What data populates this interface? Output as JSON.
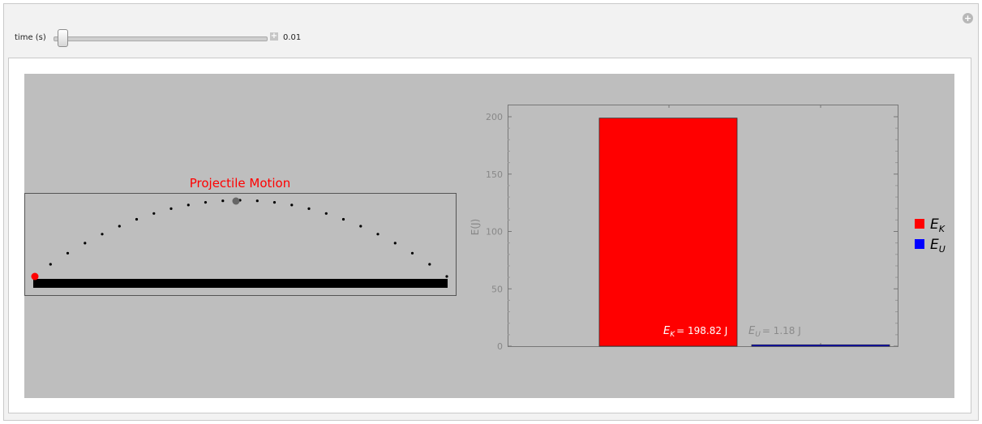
{
  "controls": {
    "time_label": "time (s)",
    "time_value": "0.01",
    "time_fraction": 0.01
  },
  "projectile": {
    "title": "Projectile Motion",
    "title_color": "#ff0000",
    "ball_color": "#ff0000",
    "apex_marker_color": "#666666",
    "trajectory_points": 25
  },
  "chart_data": {
    "type": "bar",
    "categories": [
      "E_K",
      "E_U"
    ],
    "values": [
      198.82,
      1.18
    ],
    "colors": [
      "#ff0000",
      "#0000ff"
    ],
    "ylabel": "E(J)",
    "ylim": [
      0,
      210
    ],
    "yticks": [
      0,
      50,
      100,
      150,
      200
    ],
    "ytick_labels": [
      "0",
      "50",
      "100",
      "150",
      "200"
    ],
    "data_labels": [
      {
        "sym": "E",
        "sub": "K",
        "text": "= 198.82 J"
      },
      {
        "sym": "E",
        "sub": "U",
        "text": "= 1.18 J"
      }
    ],
    "legend": [
      {
        "sym": "E",
        "sub": "K",
        "color": "#ff0000"
      },
      {
        "sym": "E",
        "sub": "U",
        "color": "#0000ff"
      }
    ],
    "legend_position": "right"
  }
}
